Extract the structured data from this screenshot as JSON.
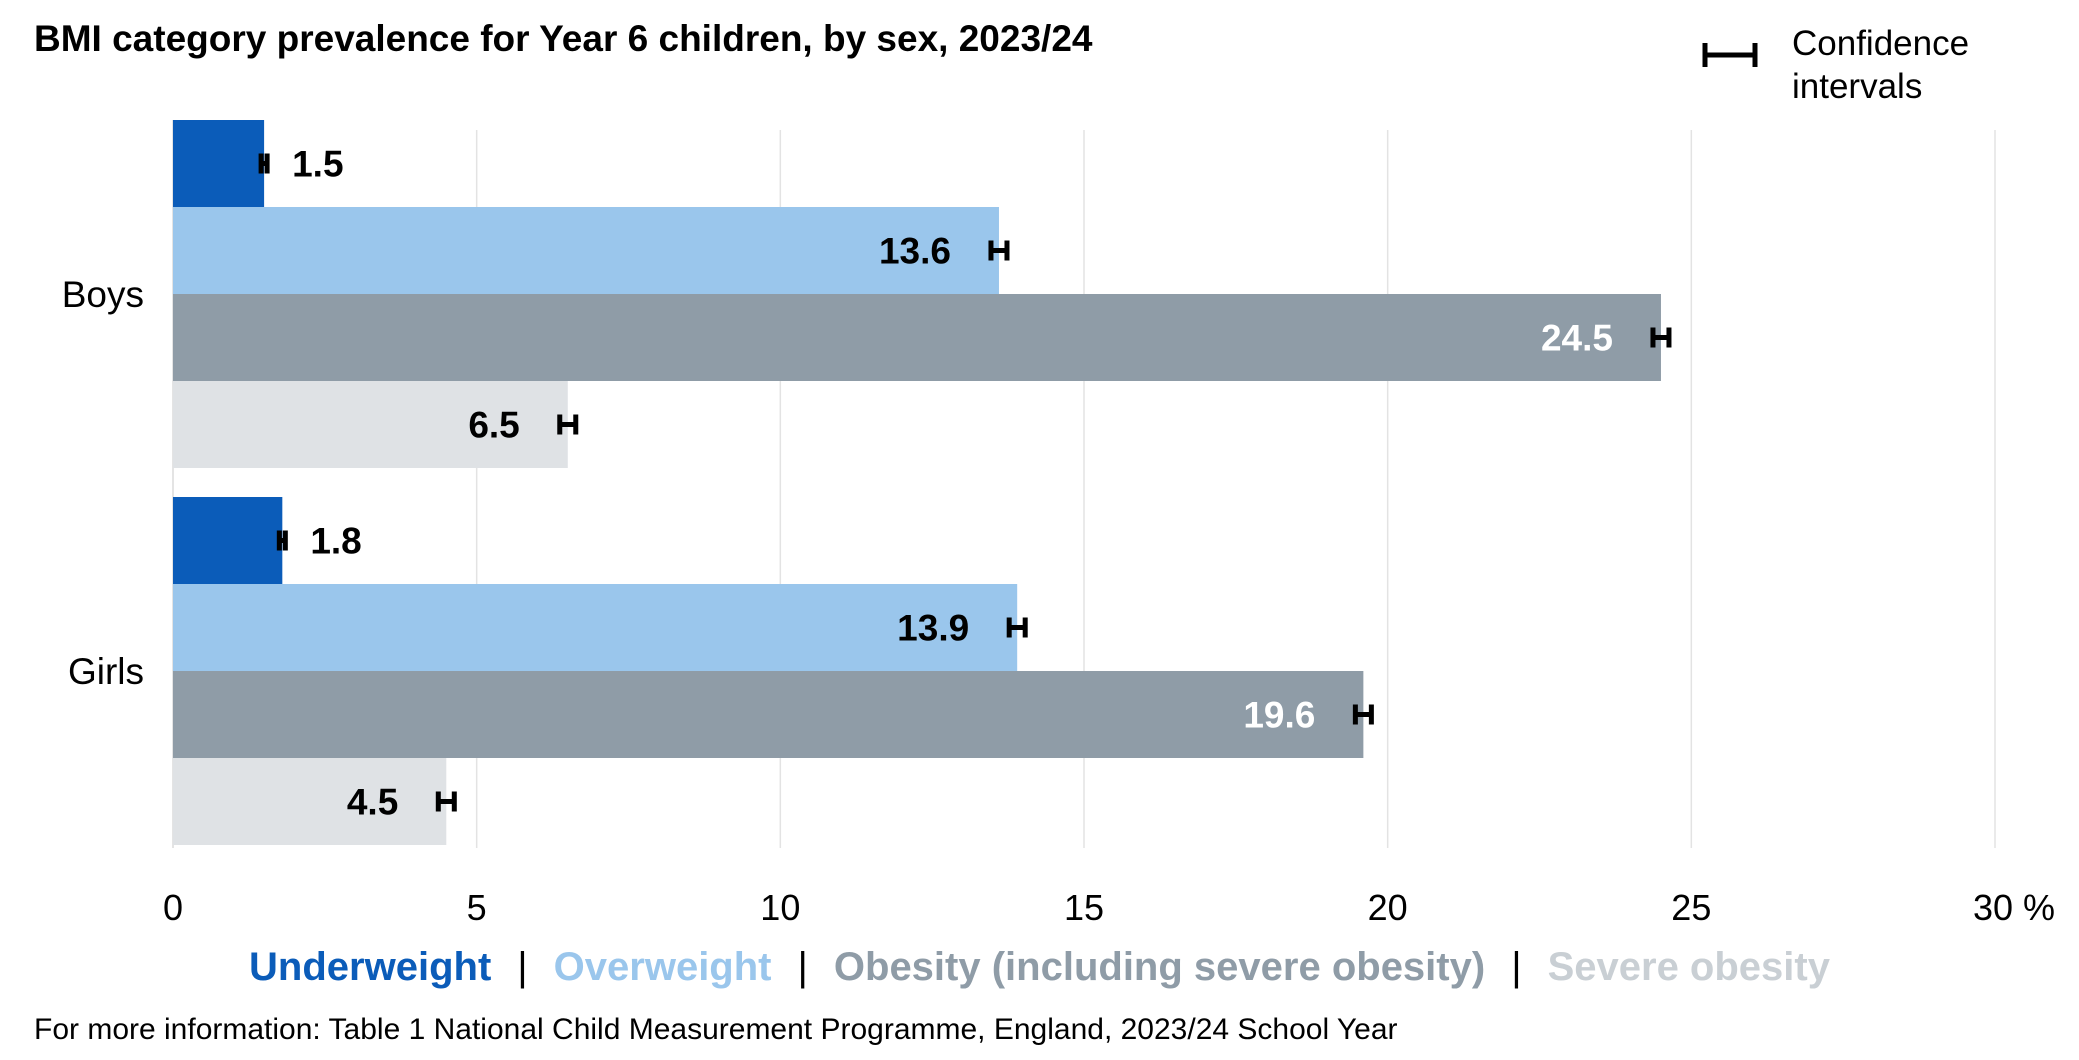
{
  "title": "BMI category prevalence for Year 6 children, by sex, 2023/24",
  "ci_legend": {
    "label_line1": "Confidence",
    "label_line2": "intervals"
  },
  "legend": [
    {
      "label": "Underweight",
      "color": "#0b5cb9"
    },
    {
      "label": "Overweight",
      "color": "#9ac6ec"
    },
    {
      "label": "Obesity (including severe obesity)",
      "color": "#8f9ca7"
    },
    {
      "label": "Severe obesity",
      "color": "#c9cfd4"
    }
  ],
  "legend_separator": "|",
  "footnote": "For more information: Table 1 National Child Measurement Programme, England, 2023/24 School Year",
  "chart_data": {
    "type": "bar",
    "orientation": "horizontal",
    "categories": [
      "Boys",
      "Girls"
    ],
    "series": [
      {
        "name": "Underweight",
        "values": [
          1.5,
          1.8
        ],
        "color": "#0b5cb9",
        "bar_color": "#0b5cb9",
        "label_color": "#000000",
        "label_position": "outside"
      },
      {
        "name": "Overweight",
        "values": [
          13.6,
          13.9
        ],
        "color": "#9ac6ec",
        "bar_color": "#9ac6ec",
        "label_color": "#000000",
        "label_position": "inside"
      },
      {
        "name": "Obesity (including severe obesity)",
        "values": [
          24.5,
          19.6
        ],
        "color": "#8f9ca7",
        "bar_color": "#8f9ca7",
        "label_color": "#ffffff",
        "label_position": "inside"
      },
      {
        "name": "Severe obesity",
        "values": [
          6.5,
          4.5
        ],
        "color": "#c9cfd4",
        "bar_color": "#dfe2e5",
        "label_color": "#000000",
        "label_position": "inside"
      }
    ],
    "data_labels": [
      [
        "1.5",
        "13.6",
        "24.5",
        "6.5"
      ],
      [
        "1.8",
        "13.9",
        "19.6",
        "4.5"
      ]
    ],
    "confidence_intervals": true,
    "xticks": [
      "0",
      "5",
      "10",
      "15",
      "20",
      "25",
      "30 %"
    ],
    "xtick_values": [
      0,
      5,
      10,
      15,
      20,
      25,
      30
    ],
    "xlim": [
      0,
      30
    ],
    "grid": true,
    "legend_position": "bottom"
  }
}
